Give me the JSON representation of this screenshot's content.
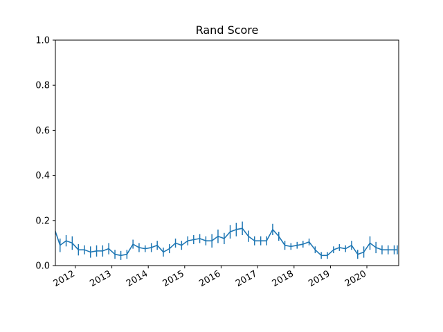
{
  "chart_data": {
    "type": "line",
    "title": "Rand Score",
    "xlabel": "",
    "ylabel": "",
    "ylim": [
      0.0,
      1.0
    ],
    "xlim": [
      "2011-06-15",
      "2020-11-15"
    ],
    "yticks": [
      "0.0",
      "0.2",
      "0.4",
      "0.6",
      "0.8",
      "1.0"
    ],
    "xticks": [
      "2012",
      "2013",
      "2014",
      "2015",
      "2016",
      "2017",
      "2018",
      "2019",
      "2020"
    ],
    "grid": false,
    "legend": "none",
    "series": [
      {
        "name": "",
        "color": "#1f77b4",
        "x": [
          "2011-06",
          "2011-08",
          "2011-10",
          "2011-12",
          "2012-02",
          "2012-04",
          "2012-06",
          "2012-08",
          "2012-10",
          "2012-12",
          "2013-02",
          "2013-04",
          "2013-06",
          "2013-08",
          "2013-10",
          "2013-12",
          "2014-02",
          "2014-04",
          "2014-06",
          "2014-08",
          "2014-10",
          "2014-12",
          "2015-02",
          "2015-04",
          "2015-06",
          "2015-08",
          "2015-10",
          "2015-12",
          "2016-02",
          "2016-04",
          "2016-06",
          "2016-08",
          "2016-10",
          "2016-12",
          "2017-02",
          "2017-04",
          "2017-06",
          "2017-08",
          "2017-10",
          "2017-12",
          "2018-02",
          "2018-04",
          "2018-06",
          "2018-08",
          "2018-10",
          "2018-12",
          "2019-02",
          "2019-04",
          "2019-06",
          "2019-08",
          "2019-10",
          "2019-12",
          "2020-02",
          "2020-04",
          "2020-06",
          "2020-08",
          "2020-10",
          "2020-11"
        ],
        "y": [
          0.17,
          0.09,
          0.11,
          0.1,
          0.07,
          0.07,
          0.06,
          0.065,
          0.065,
          0.075,
          0.05,
          0.045,
          0.05,
          0.095,
          0.08,
          0.075,
          0.08,
          0.09,
          0.06,
          0.075,
          0.1,
          0.09,
          0.11,
          0.115,
          0.12,
          0.11,
          0.11,
          0.13,
          0.12,
          0.15,
          0.16,
          0.165,
          0.13,
          0.11,
          0.11,
          0.11,
          0.16,
          0.13,
          0.09,
          0.085,
          0.09,
          0.095,
          0.105,
          0.07,
          0.045,
          0.045,
          0.07,
          0.08,
          0.075,
          0.09,
          0.05,
          0.06,
          0.1,
          0.08,
          0.07,
          0.07,
          0.07,
          0.07
        ],
        "err": [
          0.01,
          0.03,
          0.025,
          0.03,
          0.025,
          0.02,
          0.025,
          0.025,
          0.025,
          0.025,
          0.02,
          0.02,
          0.02,
          0.02,
          0.02,
          0.015,
          0.02,
          0.02,
          0.02,
          0.02,
          0.02,
          0.02,
          0.02,
          0.02,
          0.02,
          0.02,
          0.03,
          0.03,
          0.025,
          0.03,
          0.03,
          0.03,
          0.025,
          0.02,
          0.02,
          0.02,
          0.025,
          0.02,
          0.02,
          0.015,
          0.015,
          0.015,
          0.015,
          0.015,
          0.015,
          0.015,
          0.015,
          0.015,
          0.015,
          0.02,
          0.02,
          0.025,
          0.03,
          0.025,
          0.02,
          0.02,
          0.02,
          0.02
        ]
      }
    ]
  }
}
